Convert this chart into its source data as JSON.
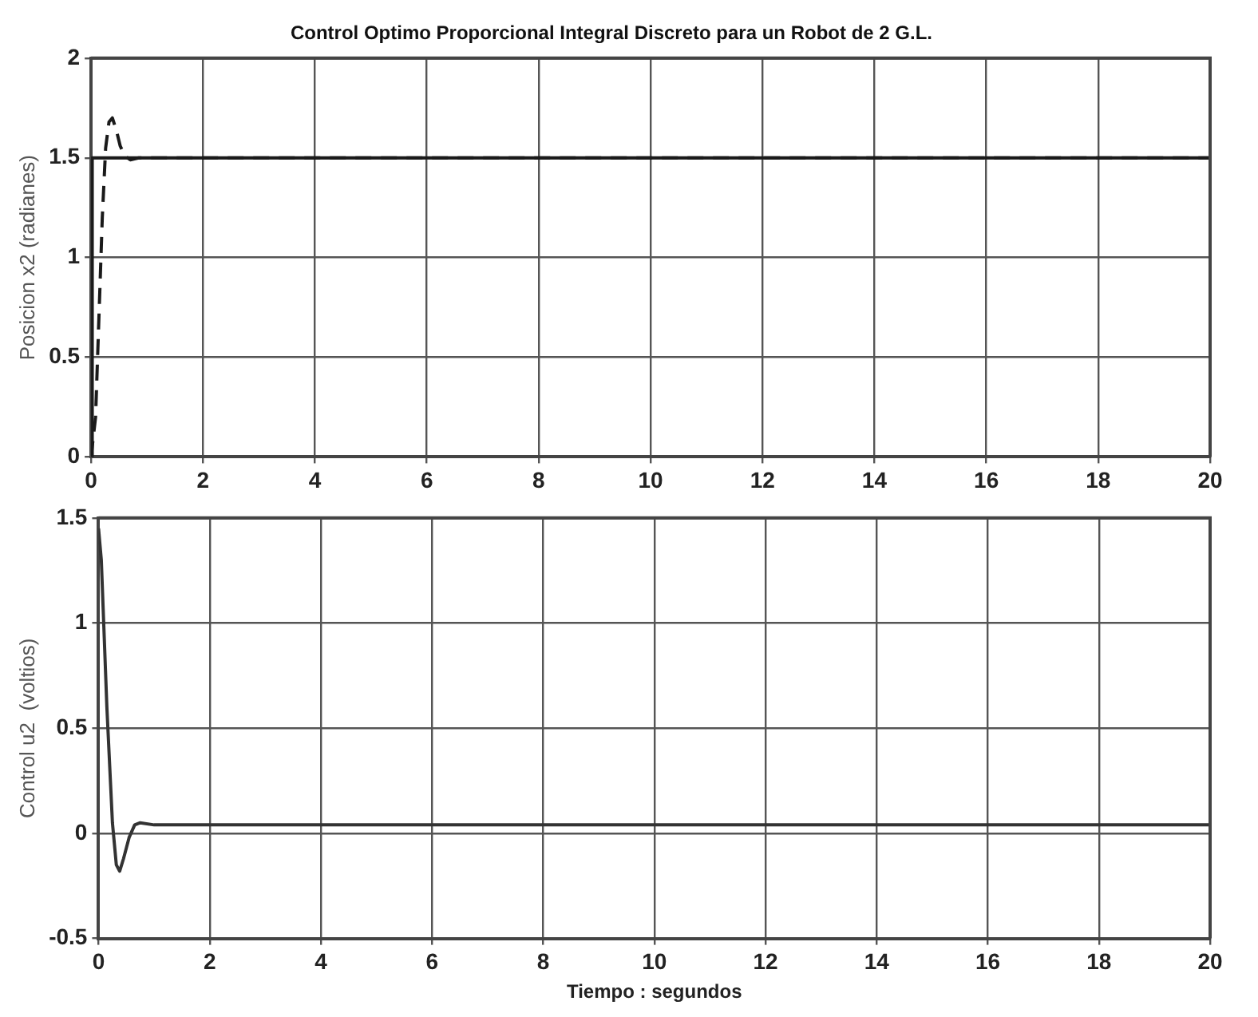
{
  "chart_data": [
    {
      "type": "line",
      "title": "Control Optimo Proporcional Integral Discreto para un Robot de 2 G.L.",
      "ylabel": "Posicion x2 (radianes)",
      "xlim": [
        0,
        20
      ],
      "xticks": [
        0,
        2,
        4,
        6,
        8,
        10,
        12,
        14,
        16,
        18,
        20
      ],
      "ylim": [
        0,
        2
      ],
      "yticks": [
        0,
        0.5,
        1,
        1.5,
        2
      ],
      "grid": true,
      "series": [
        {
          "color": "#1a1a1a",
          "line_style": "solid",
          "x": [
            0,
            0.02,
            0.3,
            20
          ],
          "values": [
            0,
            1.5,
            1.5,
            1.5
          ]
        },
        {
          "color": "#1a1a1a",
          "line_style": "dashed",
          "x": [
            0,
            0.08,
            0.14,
            0.2,
            0.26,
            0.32,
            0.38,
            0.45,
            0.52,
            0.6,
            0.7,
            0.85,
            1,
            20
          ],
          "values": [
            0,
            0.2,
            0.7,
            1.2,
            1.55,
            1.68,
            1.7,
            1.64,
            1.56,
            1.51,
            1.49,
            1.5,
            1.5,
            1.5
          ]
        }
      ]
    },
    {
      "type": "line",
      "xlabel": "Tiempo : segundos",
      "ylabel": "Control u2  (voltios)",
      "xlim": [
        0,
        20
      ],
      "xticks": [
        0,
        2,
        4,
        6,
        8,
        10,
        12,
        14,
        16,
        18,
        20
      ],
      "ylim": [
        -0.5,
        1.5
      ],
      "yticks": [
        -0.5,
        0,
        0.5,
        1,
        1.5
      ],
      "grid": true,
      "series": [
        {
          "color": "#333333",
          "line_style": "solid",
          "x": [
            0,
            0.05,
            0.15,
            0.25,
            0.32,
            0.38,
            0.45,
            0.55,
            0.65,
            0.75,
            1,
            20
          ],
          "values": [
            1.45,
            1.3,
            0.6,
            0.05,
            -0.15,
            -0.18,
            -0.12,
            -0.02,
            0.04,
            0.05,
            0.04,
            0.04
          ]
        }
      ]
    }
  ]
}
